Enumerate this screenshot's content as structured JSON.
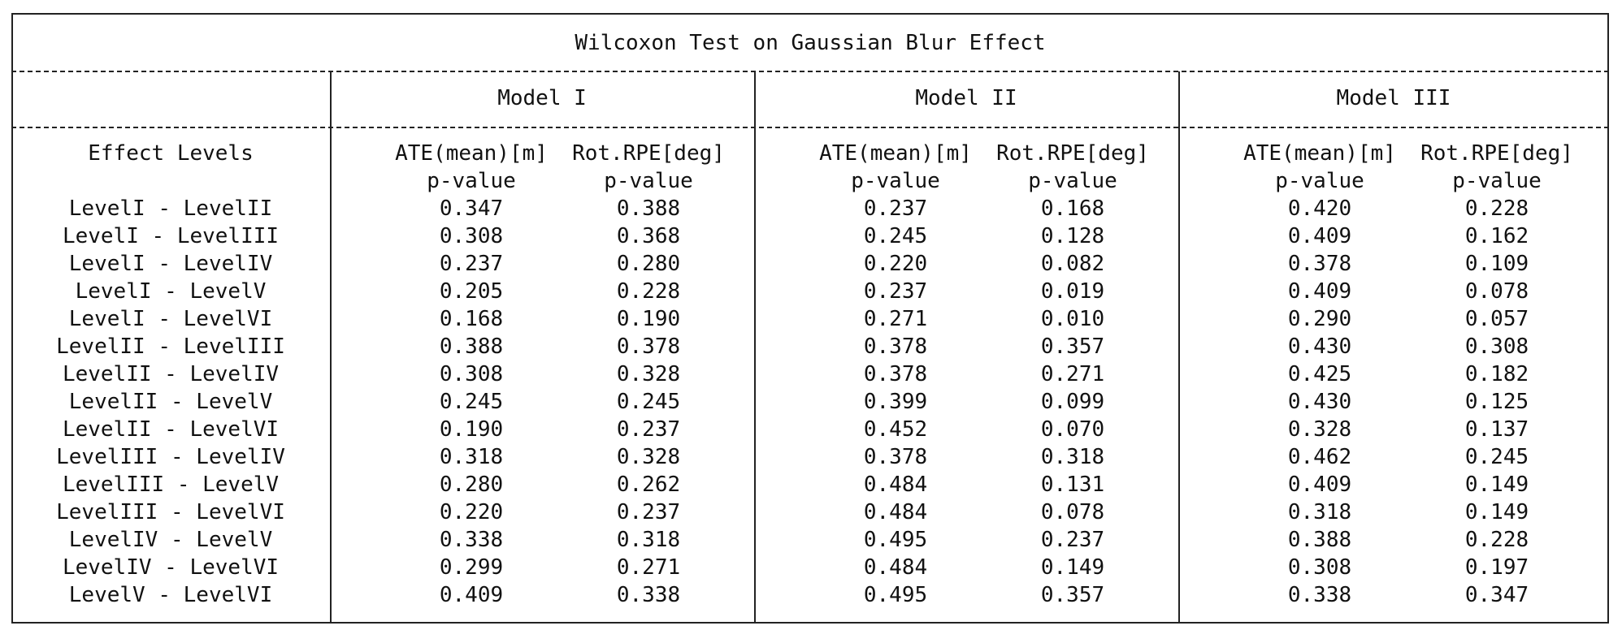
{
  "title": "Wilcoxon Test on Gaussian Blur Effect",
  "models": [
    "Model I",
    "Model II",
    "Model III"
  ],
  "row_header": "Effect Levels",
  "metric_headers": {
    "line1": [
      "ATE(mean)[m]",
      "Rot.RPE[deg]"
    ],
    "line2": [
      "p-value",
      "p-value"
    ]
  },
  "rows": [
    {
      "label": "LevelI - LevelII",
      "values": [
        "0.347",
        "0.388",
        "0.237",
        "0.168",
        "0.420",
        "0.228"
      ]
    },
    {
      "label": "LevelI - LevelIII",
      "values": [
        "0.308",
        "0.368",
        "0.245",
        "0.128",
        "0.409",
        "0.162"
      ]
    },
    {
      "label": "LevelI - LevelIV",
      "values": [
        "0.237",
        "0.280",
        "0.220",
        "0.082",
        "0.378",
        "0.109"
      ]
    },
    {
      "label": "LevelI - LevelV",
      "values": [
        "0.205",
        "0.228",
        "0.237",
        "0.019",
        "0.409",
        "0.078"
      ]
    },
    {
      "label": "LevelI - LevelVI",
      "values": [
        "0.168",
        "0.190",
        "0.271",
        "0.010",
        "0.290",
        "0.057"
      ]
    },
    {
      "label": "LevelII - LevelIII",
      "values": [
        "0.388",
        "0.378",
        "0.378",
        "0.357",
        "0.430",
        "0.308"
      ]
    },
    {
      "label": "LevelII - LevelIV",
      "values": [
        "0.308",
        "0.328",
        "0.378",
        "0.271",
        "0.425",
        "0.182"
      ]
    },
    {
      "label": "LevelII - LevelV",
      "values": [
        "0.245",
        "0.245",
        "0.399",
        "0.099",
        "0.430",
        "0.125"
      ]
    },
    {
      "label": "LevelII - LevelVI",
      "values": [
        "0.190",
        "0.237",
        "0.452",
        "0.070",
        "0.328",
        "0.137"
      ]
    },
    {
      "label": "LevelIII - LevelIV",
      "values": [
        "0.318",
        "0.328",
        "0.378",
        "0.318",
        "0.462",
        "0.245"
      ]
    },
    {
      "label": "LevelIII - LevelV",
      "values": [
        "0.280",
        "0.262",
        "0.484",
        "0.131",
        "0.409",
        "0.149"
      ]
    },
    {
      "label": "LevelIII - LevelVI",
      "values": [
        "0.220",
        "0.237",
        "0.484",
        "0.078",
        "0.318",
        "0.149"
      ]
    },
    {
      "label": "LevelIV - LevelV",
      "values": [
        "0.338",
        "0.318",
        "0.495",
        "0.237",
        "0.388",
        "0.228"
      ]
    },
    {
      "label": "LevelIV - LevelVI",
      "values": [
        "0.299",
        "0.271",
        "0.484",
        "0.149",
        "0.308",
        "0.197"
      ]
    },
    {
      "label": "LevelV - LevelVI",
      "values": [
        "0.409",
        "0.338",
        "0.495",
        "0.357",
        "0.338",
        "0.347"
      ]
    }
  ]
}
